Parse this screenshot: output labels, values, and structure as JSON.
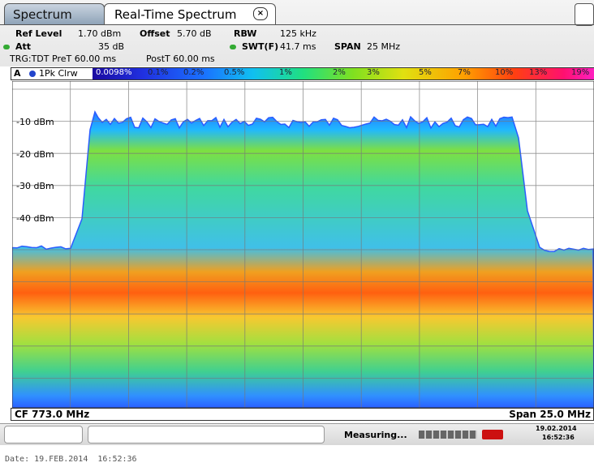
{
  "tabs": [
    "Spectrum",
    "Real-Time Spectrum"
  ],
  "settings": {
    "ref_level_label": "Ref Level",
    "ref_level": "1.70 dBm",
    "offset_label": "Offset",
    "offset": "5.70 dB",
    "rbw_label": "RBW",
    "rbw": "125 kHz",
    "att_label": "Att",
    "att": "35 dB",
    "swt_label": "SWT(F)",
    "swt": "41.7 ms",
    "span_label": "SPAN",
    "span": "25 MHz",
    "pre_trigger": "TRG:TDT PreT 60.00 ms",
    "post_trigger": "PostT 60.00 ms"
  },
  "trace": {
    "window": "A",
    "label": "1Pk Clrw"
  },
  "color_scale": [
    "0.0098%",
    "0.1%",
    "0.2%",
    "0.5%",
    "1%",
    "2%",
    "3%",
    "5%",
    "7%",
    "10%",
    "13%",
    "19%"
  ],
  "y_labels": [
    "-10 dBm",
    "-20 dBm",
    "-30 dBm",
    "-40 dBm"
  ],
  "footer": {
    "center": "CF 773.0 MHz",
    "span": "Span 25.0 MHz"
  },
  "status": {
    "text": "Measuring...",
    "date": "19.02.2014",
    "time": "16:52:36"
  },
  "date_line": "Date: 19.FEB.2014  16:52:36"
}
